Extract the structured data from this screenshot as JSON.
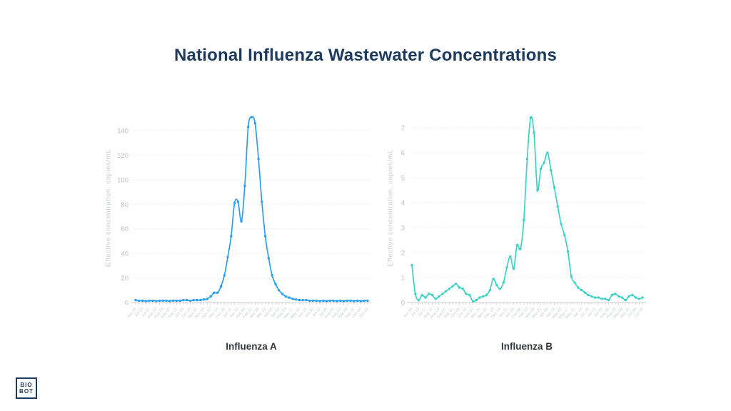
{
  "page": {
    "title": "National Influenza Wastewater Concentrations"
  },
  "branding": {
    "logo_top": "BIO",
    "logo_bottom": "BOT"
  },
  "colors": {
    "title": "#1c3a5e",
    "influenza_a": "#2b9ef0",
    "influenza_b": "#3ed2c5",
    "grid": "#dfe3e7",
    "axis": "#d2d6db",
    "tick_stub": "#ccd1d7",
    "y_tick_label": "#b7bfc8",
    "x_tick_label": "#c6ccd3",
    "axis_label": "#c3cad2",
    "caption": "#32373d"
  },
  "chart_data": [
    {
      "type": "line",
      "title": "Influenza A",
      "ylabel": "Effective concentration, copies/mL",
      "color": "#2b9ef0",
      "ylim": [
        0,
        155
      ],
      "yticks": [
        0,
        20,
        40,
        60,
        80,
        100,
        120,
        140
      ],
      "grid": true,
      "legend": "none",
      "x_label_every": 2,
      "categories": [
        "Jun 29",
        "Jul 06",
        "Jul 13",
        "Jul 20",
        "Jul 27",
        "Aug 03",
        "Aug 10",
        "Aug 17",
        "Aug 24",
        "Aug 31",
        "Sep 07",
        "Sep 14",
        "Sep 21",
        "Sep 28",
        "Oct 05",
        "Oct 12",
        "Oct 19",
        "Oct 26",
        "Nov 02",
        "Nov 09",
        "Nov 16",
        "Nov 23",
        "Nov 30",
        "Dec 07",
        "Dec 14",
        "Dec 21",
        "Dec 28",
        "Jan 04",
        "Jan 11",
        "Jan 18",
        "Jan 25",
        "Feb 01",
        "Feb 08",
        "Feb 15",
        "Feb 22",
        "Mar 01",
        "Mar 08",
        "Mar 15",
        "Mar 22",
        "Mar 29",
        "Apr 05",
        "Apr 12",
        "Apr 19",
        "Apr 26",
        "May 03",
        "May 10",
        "May 17",
        "May 24",
        "May 31",
        "Jun 07",
        "Jun 14",
        "Jun 21",
        "Jun 28",
        "Jul 05",
        "Jul 12",
        "Jul 19",
        "Jul 26",
        "Aug 02",
        "Aug 09",
        "Aug 16",
        "Aug 23",
        "Aug 30",
        "Sep 06",
        "Sep 13",
        "Sep 20",
        "Sep 27",
        "Oct 04",
        "Oct 11",
        "Oct 18"
      ],
      "values": [
        2,
        1.5,
        1.5,
        1.2,
        1.5,
        1.5,
        1.2,
        1.5,
        1.5,
        1.5,
        1.2,
        1.5,
        1.5,
        1.5,
        2,
        2,
        1.5,
        2,
        2,
        2,
        2.5,
        3,
        5,
        8,
        8,
        13,
        22,
        37,
        54,
        81,
        82,
        66,
        95,
        143,
        151,
        146,
        117,
        82,
        54,
        36,
        22,
        15,
        10,
        7,
        5,
        4,
        3,
        2.5,
        2,
        2,
        2,
        1.5,
        1.5,
        1.5,
        1.2,
        1.5,
        1.2,
        1.5,
        1.5,
        1.2,
        1.5,
        1.2,
        1.5,
        1.5,
        1.2,
        1.5,
        1.2,
        1.5,
        1.5
      ]
    },
    {
      "type": "line",
      "title": "Influenza B",
      "ylabel": "Effective concentration, copies/mL",
      "color": "#3ed2c5",
      "ylim": [
        0,
        7.8
      ],
      "yticks": [
        0,
        1,
        2,
        3,
        4,
        5,
        6,
        7
      ],
      "grid": true,
      "legend": "none",
      "x_label_every": 2,
      "categories": [
        "Jun 29",
        "Jul 06",
        "Jul 13",
        "Jul 20",
        "Jul 27",
        "Aug 03",
        "Aug 10",
        "Aug 17",
        "Aug 24",
        "Aug 31",
        "Sep 07",
        "Sep 14",
        "Sep 21",
        "Sep 28",
        "Oct 05",
        "Oct 12",
        "Oct 19",
        "Oct 26",
        "Nov 02",
        "Nov 09",
        "Nov 16",
        "Nov 23",
        "Nov 30",
        "Dec 07",
        "Dec 14",
        "Dec 21",
        "Dec 28",
        "Jan 04",
        "Jan 11",
        "Jan 18",
        "Jan 25",
        "Feb 01",
        "Feb 08",
        "Feb 15",
        "Feb 22",
        "Mar 01",
        "Mar 08",
        "Mar 15",
        "Mar 22",
        "Mar 29",
        "Apr 05",
        "Apr 12",
        "Apr 19",
        "Apr 26",
        "May 03",
        "May 10",
        "May 17",
        "May 24",
        "May 31",
        "Jun 07",
        "Jun 14",
        "Jun 21",
        "Jun 28",
        "Jul 05",
        "Jul 12",
        "Jul 19",
        "Jul 26",
        "Aug 02",
        "Aug 09",
        "Aug 16",
        "Aug 23",
        "Aug 30",
        "Sep 06",
        "Sep 13",
        "Sep 20",
        "Sep 27",
        "Oct 04",
        "Oct 11",
        "Oct 18"
      ],
      "values": [
        1.5,
        0.35,
        0.1,
        0.3,
        0.2,
        0.35,
        0.3,
        0.15,
        0.25,
        0.35,
        0.45,
        0.55,
        0.65,
        0.75,
        0.6,
        0.55,
        0.35,
        0.3,
        0.05,
        0.1,
        0.2,
        0.25,
        0.3,
        0.5,
        0.95,
        0.7,
        0.55,
        0.8,
        1.4,
        1.85,
        1.35,
        2.3,
        2.15,
        3.3,
        5.75,
        7.4,
        6.8,
        4.5,
        5.35,
        5.6,
        6.0,
        5.3,
        4.6,
        3.85,
        3.15,
        2.7,
        2.05,
        1.05,
        0.8,
        0.6,
        0.5,
        0.4,
        0.3,
        0.25,
        0.2,
        0.2,
        0.15,
        0.15,
        0.1,
        0.3,
        0.35,
        0.25,
        0.2,
        0.1,
        0.25,
        0.3,
        0.2,
        0.15,
        0.2
      ]
    }
  ]
}
